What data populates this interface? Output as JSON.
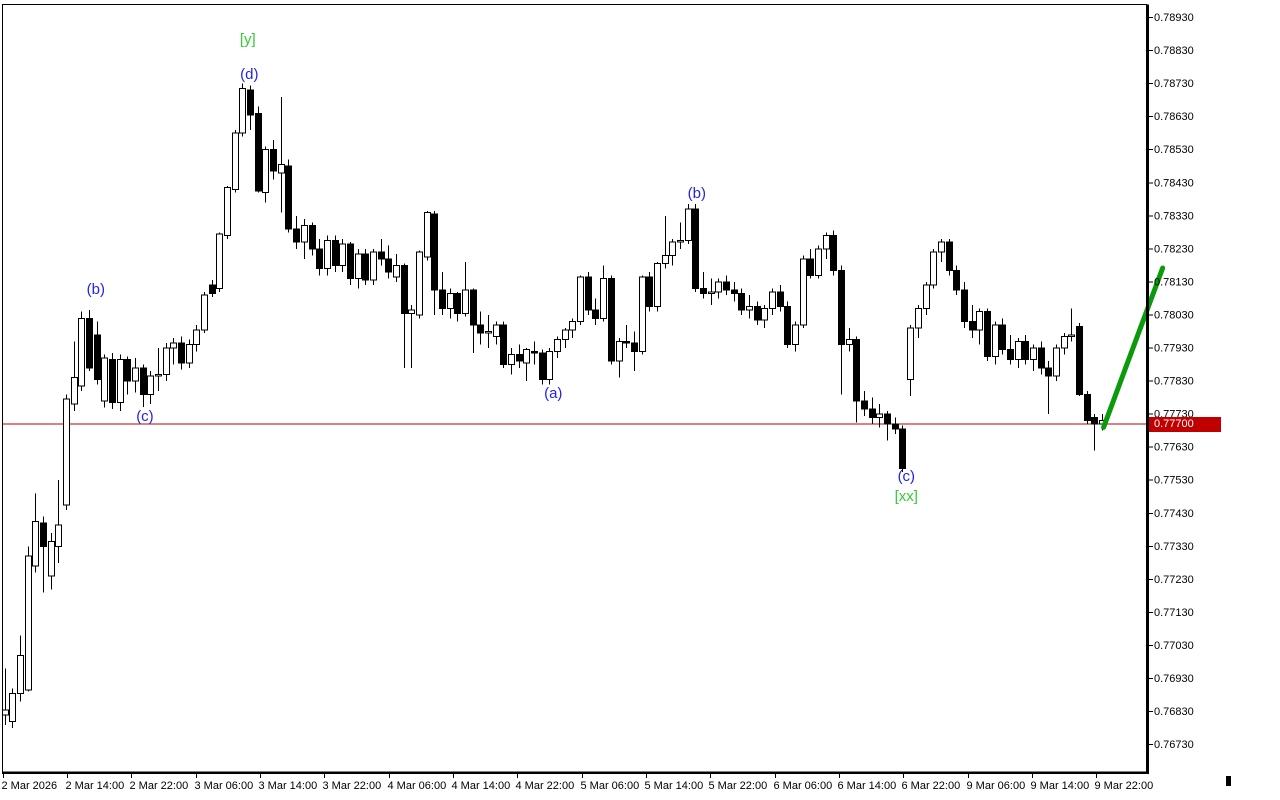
{
  "colors": {
    "background": "#ffffff",
    "bull_fill": "#ffffff",
    "bear_fill": "#000000",
    "candle_outline": "#000000",
    "axis_line": "#000000",
    "axis_text": "#000000",
    "price_line": "#c00000",
    "price_tag_bg": "#c00000",
    "price_tag_text": "#ffffff",
    "wave_blue": "#2222ee",
    "wave_green": "#32cd32",
    "forecast_green": "#0a9a0a"
  },
  "chart_data": {
    "type": "candlestick",
    "title": "",
    "x_ticks": [
      "2 Mar 2026",
      "2 Mar 14:00",
      "2 Mar 22:00",
      "3 Mar 06:00",
      "3 Mar 14:00",
      "3 Mar 22:00",
      "4 Mar 06:00",
      "4 Mar 14:00",
      "4 Mar 22:00",
      "5 Mar 06:00",
      "5 Mar 14:00",
      "5 Mar 22:00",
      "6 Mar 06:00",
      "6 Mar 14:00",
      "6 Mar 22:00",
      "9 Mar 06:00",
      "9 Mar 14:00",
      "9 Mar 22:00"
    ],
    "y_ticks": [
      "0.78930",
      "0.78830",
      "0.78730",
      "0.78630",
      "0.78530",
      "0.78430",
      "0.78330",
      "0.78230",
      "0.78130",
      "0.78030",
      "0.77930",
      "0.77830",
      "0.77730",
      "0.77630",
      "0.77530",
      "0.77430",
      "0.77330",
      "0.77230",
      "0.77130",
      "0.77030",
      "0.76930",
      "0.76830",
      "0.76730"
    ],
    "axis_range": {
      "price_top_tick": 0.7893,
      "price_bottom_tick": 0.7673,
      "tick_step": 0.001
    },
    "grid": false,
    "current_price_line": {
      "price": 0.777,
      "label": "0.77700"
    },
    "candles": [
      [
        0.7682,
        0.7696,
        0.7679,
        0.76835
      ],
      [
        0.768,
        0.769,
        0.7678,
        0.76885
      ],
      [
        0.76885,
        0.7706,
        0.7686,
        0.77
      ],
      [
        0.76895,
        0.7733,
        0.7689,
        0.773
      ],
      [
        0.7727,
        0.7749,
        0.7725,
        0.77405
      ],
      [
        0.774,
        0.7742,
        0.7719,
        0.7733
      ],
      [
        0.7724,
        0.7737,
        0.772,
        0.77345
      ],
      [
        0.7733,
        0.7753,
        0.7728,
        0.77395
      ],
      [
        0.77455,
        0.7779,
        0.7744,
        0.77775
      ],
      [
        0.7776,
        0.7795,
        0.7774,
        0.7784
      ],
      [
        0.77815,
        0.7804,
        0.778,
        0.7802
      ],
      [
        0.7802,
        0.78045,
        0.7786,
        0.7787
      ],
      [
        0.7797,
        0.7801,
        0.7782,
        0.77835
      ],
      [
        0.7777,
        0.7791,
        0.7775,
        0.779
      ],
      [
        0.77895,
        0.77915,
        0.77745,
        0.77765
      ],
      [
        0.77765,
        0.7791,
        0.7774,
        0.77895
      ],
      [
        0.77895,
        0.77905,
        0.7779,
        0.7783
      ],
      [
        0.7783,
        0.779,
        0.77795,
        0.7787
      ],
      [
        0.7787,
        0.7788,
        0.77752,
        0.7779
      ],
      [
        0.7779,
        0.7786,
        0.7776,
        0.77845
      ],
      [
        0.77845,
        0.7793,
        0.778,
        0.7785
      ],
      [
        0.7785,
        0.77945,
        0.7783,
        0.7793
      ],
      [
        0.7793,
        0.7796,
        0.7788,
        0.77945
      ],
      [
        0.77945,
        0.77965,
        0.77865,
        0.77885
      ],
      [
        0.77885,
        0.77955,
        0.7787,
        0.7794
      ],
      [
        0.7794,
        0.78,
        0.7792,
        0.77985
      ],
      [
        0.77985,
        0.781,
        0.77975,
        0.7809
      ],
      [
        0.7812,
        0.78135,
        0.78085,
        0.78095
      ],
      [
        0.7811,
        0.7828,
        0.781,
        0.78275
      ],
      [
        0.7827,
        0.7842,
        0.7826,
        0.78415
      ],
      [
        0.7841,
        0.7859,
        0.784,
        0.7858
      ],
      [
        0.7858,
        0.7873,
        0.7857,
        0.78715
      ],
      [
        0.7871,
        0.78725,
        0.7859,
        0.78635
      ],
      [
        0.7864,
        0.7866,
        0.784,
        0.78405
      ],
      [
        0.784,
        0.7854,
        0.7837,
        0.7853
      ],
      [
        0.7853,
        0.7856,
        0.7844,
        0.78465
      ],
      [
        0.7846,
        0.7869,
        0.7834,
        0.78485
      ],
      [
        0.7848,
        0.785,
        0.7828,
        0.7829
      ],
      [
        0.7829,
        0.7833,
        0.7823,
        0.7825
      ],
      [
        0.7825,
        0.7832,
        0.782,
        0.783
      ],
      [
        0.783,
        0.7831,
        0.7821,
        0.7823
      ],
      [
        0.7823,
        0.7826,
        0.7815,
        0.7817
      ],
      [
        0.7817,
        0.7827,
        0.7815,
        0.78255
      ],
      [
        0.78255,
        0.7827,
        0.7816,
        0.7818
      ],
      [
        0.7818,
        0.7826,
        0.7816,
        0.78245
      ],
      [
        0.78245,
        0.7825,
        0.7812,
        0.7814
      ],
      [
        0.7814,
        0.7823,
        0.7811,
        0.78215
      ],
      [
        0.78215,
        0.7823,
        0.7812,
        0.78135
      ],
      [
        0.78135,
        0.7823,
        0.7812,
        0.7822
      ],
      [
        0.7822,
        0.7826,
        0.7818,
        0.782
      ],
      [
        0.782,
        0.7824,
        0.7814,
        0.7816
      ],
      [
        0.78145,
        0.78215,
        0.7813,
        0.7818
      ],
      [
        0.7818,
        0.78185,
        0.7787,
        0.78035
      ],
      [
        0.78035,
        0.7806,
        0.7787,
        0.78045
      ],
      [
        0.7803,
        0.78225,
        0.7802,
        0.7822
      ],
      [
        0.78205,
        0.78345,
        0.78195,
        0.7834
      ],
      [
        0.78335,
        0.78345,
        0.7803,
        0.78105
      ],
      [
        0.78105,
        0.7816,
        0.7803,
        0.7805
      ],
      [
        0.7805,
        0.7811,
        0.7802,
        0.78095
      ],
      [
        0.78095,
        0.781,
        0.7801,
        0.78035
      ],
      [
        0.78035,
        0.7819,
        0.78025,
        0.78105
      ],
      [
        0.78105,
        0.7811,
        0.77915,
        0.78
      ],
      [
        0.78,
        0.7804,
        0.7794,
        0.77975
      ],
      [
        0.77975,
        0.7803,
        0.7793,
        0.7798
      ],
      [
        0.77965,
        0.7801,
        0.7794,
        0.78
      ],
      [
        0.78,
        0.7801,
        0.7787,
        0.7788
      ],
      [
        0.7788,
        0.7793,
        0.7785,
        0.7791
      ],
      [
        0.7791,
        0.7794,
        0.7787,
        0.7789
      ],
      [
        0.77885,
        0.7793,
        0.7783,
        0.77925
      ],
      [
        0.7792,
        0.7795,
        0.7788,
        0.77915
      ],
      [
        0.77915,
        0.77925,
        0.7782,
        0.77835
      ],
      [
        0.77835,
        0.7793,
        0.7782,
        0.7792
      ],
      [
        0.7792,
        0.77965,
        0.779,
        0.77955
      ],
      [
        0.77955,
        0.7799,
        0.7793,
        0.77985
      ],
      [
        0.77985,
        0.7802,
        0.7796,
        0.7801
      ],
      [
        0.7801,
        0.7815,
        0.78,
        0.78145
      ],
      [
        0.78145,
        0.7816,
        0.7803,
        0.78045
      ],
      [
        0.78045,
        0.7808,
        0.78,
        0.7802
      ],
      [
        0.7802,
        0.7818,
        0.7801,
        0.7814
      ],
      [
        0.7814,
        0.7815,
        0.7788,
        0.7789
      ],
      [
        0.7789,
        0.7796,
        0.7784,
        0.7795
      ],
      [
        0.7795,
        0.78,
        0.7793,
        0.77945
      ],
      [
        0.77945,
        0.7798,
        0.7786,
        0.7792
      ],
      [
        0.7792,
        0.7815,
        0.7791,
        0.78145
      ],
      [
        0.78145,
        0.7816,
        0.7804,
        0.78055
      ],
      [
        0.78055,
        0.7819,
        0.7804,
        0.78185
      ],
      [
        0.78185,
        0.7833,
        0.7817,
        0.7821
      ],
      [
        0.7821,
        0.7826,
        0.7818,
        0.7825
      ],
      [
        0.7825,
        0.7831,
        0.7823,
        0.78255
      ],
      [
        0.78255,
        0.78365,
        0.78245,
        0.7835
      ],
      [
        0.7835,
        0.78365,
        0.781,
        0.7811
      ],
      [
        0.7811,
        0.7816,
        0.7808,
        0.78095
      ],
      [
        0.78095,
        0.7814,
        0.7806,
        0.781
      ],
      [
        0.781,
        0.7814,
        0.7808,
        0.7813
      ],
      [
        0.7813,
        0.7815,
        0.7809,
        0.78105
      ],
      [
        0.78105,
        0.7813,
        0.7807,
        0.78095
      ],
      [
        0.78095,
        0.7811,
        0.7803,
        0.78045
      ],
      [
        0.78045,
        0.7809,
        0.7802,
        0.78055
      ],
      [
        0.78055,
        0.7807,
        0.78,
        0.78015
      ],
      [
        0.78015,
        0.7806,
        0.7799,
        0.7805
      ],
      [
        0.7805,
        0.7811,
        0.7803,
        0.781
      ],
      [
        0.781,
        0.7812,
        0.7804,
        0.78055
      ],
      [
        0.78055,
        0.7807,
        0.7793,
        0.7794
      ],
      [
        0.7794,
        0.7801,
        0.7792,
        0.78
      ],
      [
        0.78,
        0.7821,
        0.7799,
        0.782
      ],
      [
        0.782,
        0.7823,
        0.7814,
        0.7815
      ],
      [
        0.7815,
        0.7824,
        0.7814,
        0.7823
      ],
      [
        0.7823,
        0.7828,
        0.782,
        0.7827
      ],
      [
        0.7827,
        0.78285,
        0.7815,
        0.78165
      ],
      [
        0.78165,
        0.7818,
        0.7779,
        0.7794
      ],
      [
        0.7794,
        0.7799,
        0.7792,
        0.77955
      ],
      [
        0.77955,
        0.77965,
        0.77705,
        0.7777
      ],
      [
        0.7777,
        0.778,
        0.77725,
        0.77745
      ],
      [
        0.77745,
        0.7778,
        0.777,
        0.7772
      ],
      [
        0.7772,
        0.7776,
        0.7769,
        0.7773
      ],
      [
        0.7773,
        0.7774,
        0.7765,
        0.777
      ],
      [
        0.777,
        0.7772,
        0.7767,
        0.77685
      ],
      [
        0.77685,
        0.77695,
        0.77555,
        0.77565
      ],
      [
        0.77835,
        0.78,
        0.77785,
        0.7799
      ],
      [
        0.7799,
        0.7806,
        0.7796,
        0.7805
      ],
      [
        0.7805,
        0.7813,
        0.7803,
        0.7812
      ],
      [
        0.7812,
        0.7823,
        0.7811,
        0.7822
      ],
      [
        0.7822,
        0.7826,
        0.7819,
        0.7825
      ],
      [
        0.7825,
        0.7826,
        0.7815,
        0.78165
      ],
      [
        0.78165,
        0.7818,
        0.7809,
        0.78105
      ],
      [
        0.78105,
        0.7813,
        0.7799,
        0.7801
      ],
      [
        0.7801,
        0.7806,
        0.7796,
        0.77985
      ],
      [
        0.77985,
        0.7805,
        0.7794,
        0.7804
      ],
      [
        0.7804,
        0.7805,
        0.7789,
        0.77905
      ],
      [
        0.77905,
        0.7801,
        0.7788,
        0.78
      ],
      [
        0.78,
        0.7802,
        0.7791,
        0.77925
      ],
      [
        0.77925,
        0.7797,
        0.7788,
        0.77895
      ],
      [
        0.77895,
        0.7796,
        0.7787,
        0.7795
      ],
      [
        0.7795,
        0.7797,
        0.7788,
        0.77895
      ],
      [
        0.77895,
        0.7794,
        0.7786,
        0.7793
      ],
      [
        0.7793,
        0.7795,
        0.7785,
        0.7787
      ],
      [
        0.7787,
        0.7789,
        0.7773,
        0.77845
      ],
      [
        0.77845,
        0.7794,
        0.7783,
        0.7793
      ],
      [
        0.7793,
        0.77975,
        0.7791,
        0.77965
      ],
      [
        0.77965,
        0.7805,
        0.7795,
        0.7797
      ],
      [
        0.77995,
        0.78005,
        0.77785,
        0.7779
      ],
      [
        0.7779,
        0.778,
        0.777,
        0.7771
      ],
      [
        0.7772,
        0.7773,
        0.7762,
        0.777
      ],
      [
        0.777,
        0.7773,
        0.7768,
        0.7771
      ]
    ],
    "wave_labels": [
      {
        "text": "(b)",
        "index": 11.9,
        "price": 0.78105,
        "color": "blue"
      },
      {
        "text": "(c)",
        "index": 18.3,
        "price": 0.77721,
        "color": "blue"
      },
      {
        "text": "[y]",
        "index": 31.7,
        "price": 0.78862,
        "color": "green"
      },
      {
        "text": "(d)",
        "index": 31.9,
        "price": 0.78756,
        "color": "blue"
      },
      {
        "text": "(a)",
        "index": 71.5,
        "price": 0.77791,
        "color": "blue"
      },
      {
        "text": "(b)",
        "index": 90.2,
        "price": 0.78396,
        "color": "blue"
      },
      {
        "text": "(c)",
        "index": 117.5,
        "price": 0.7754,
        "color": "blue"
      },
      {
        "text": "[xx]",
        "index": 117.5,
        "price": 0.77479,
        "color": "green"
      }
    ],
    "forecast_line": {
      "from_index": 143.2,
      "from_price": 0.7769,
      "to_index": 150.9,
      "to_price": 0.78172
    }
  }
}
